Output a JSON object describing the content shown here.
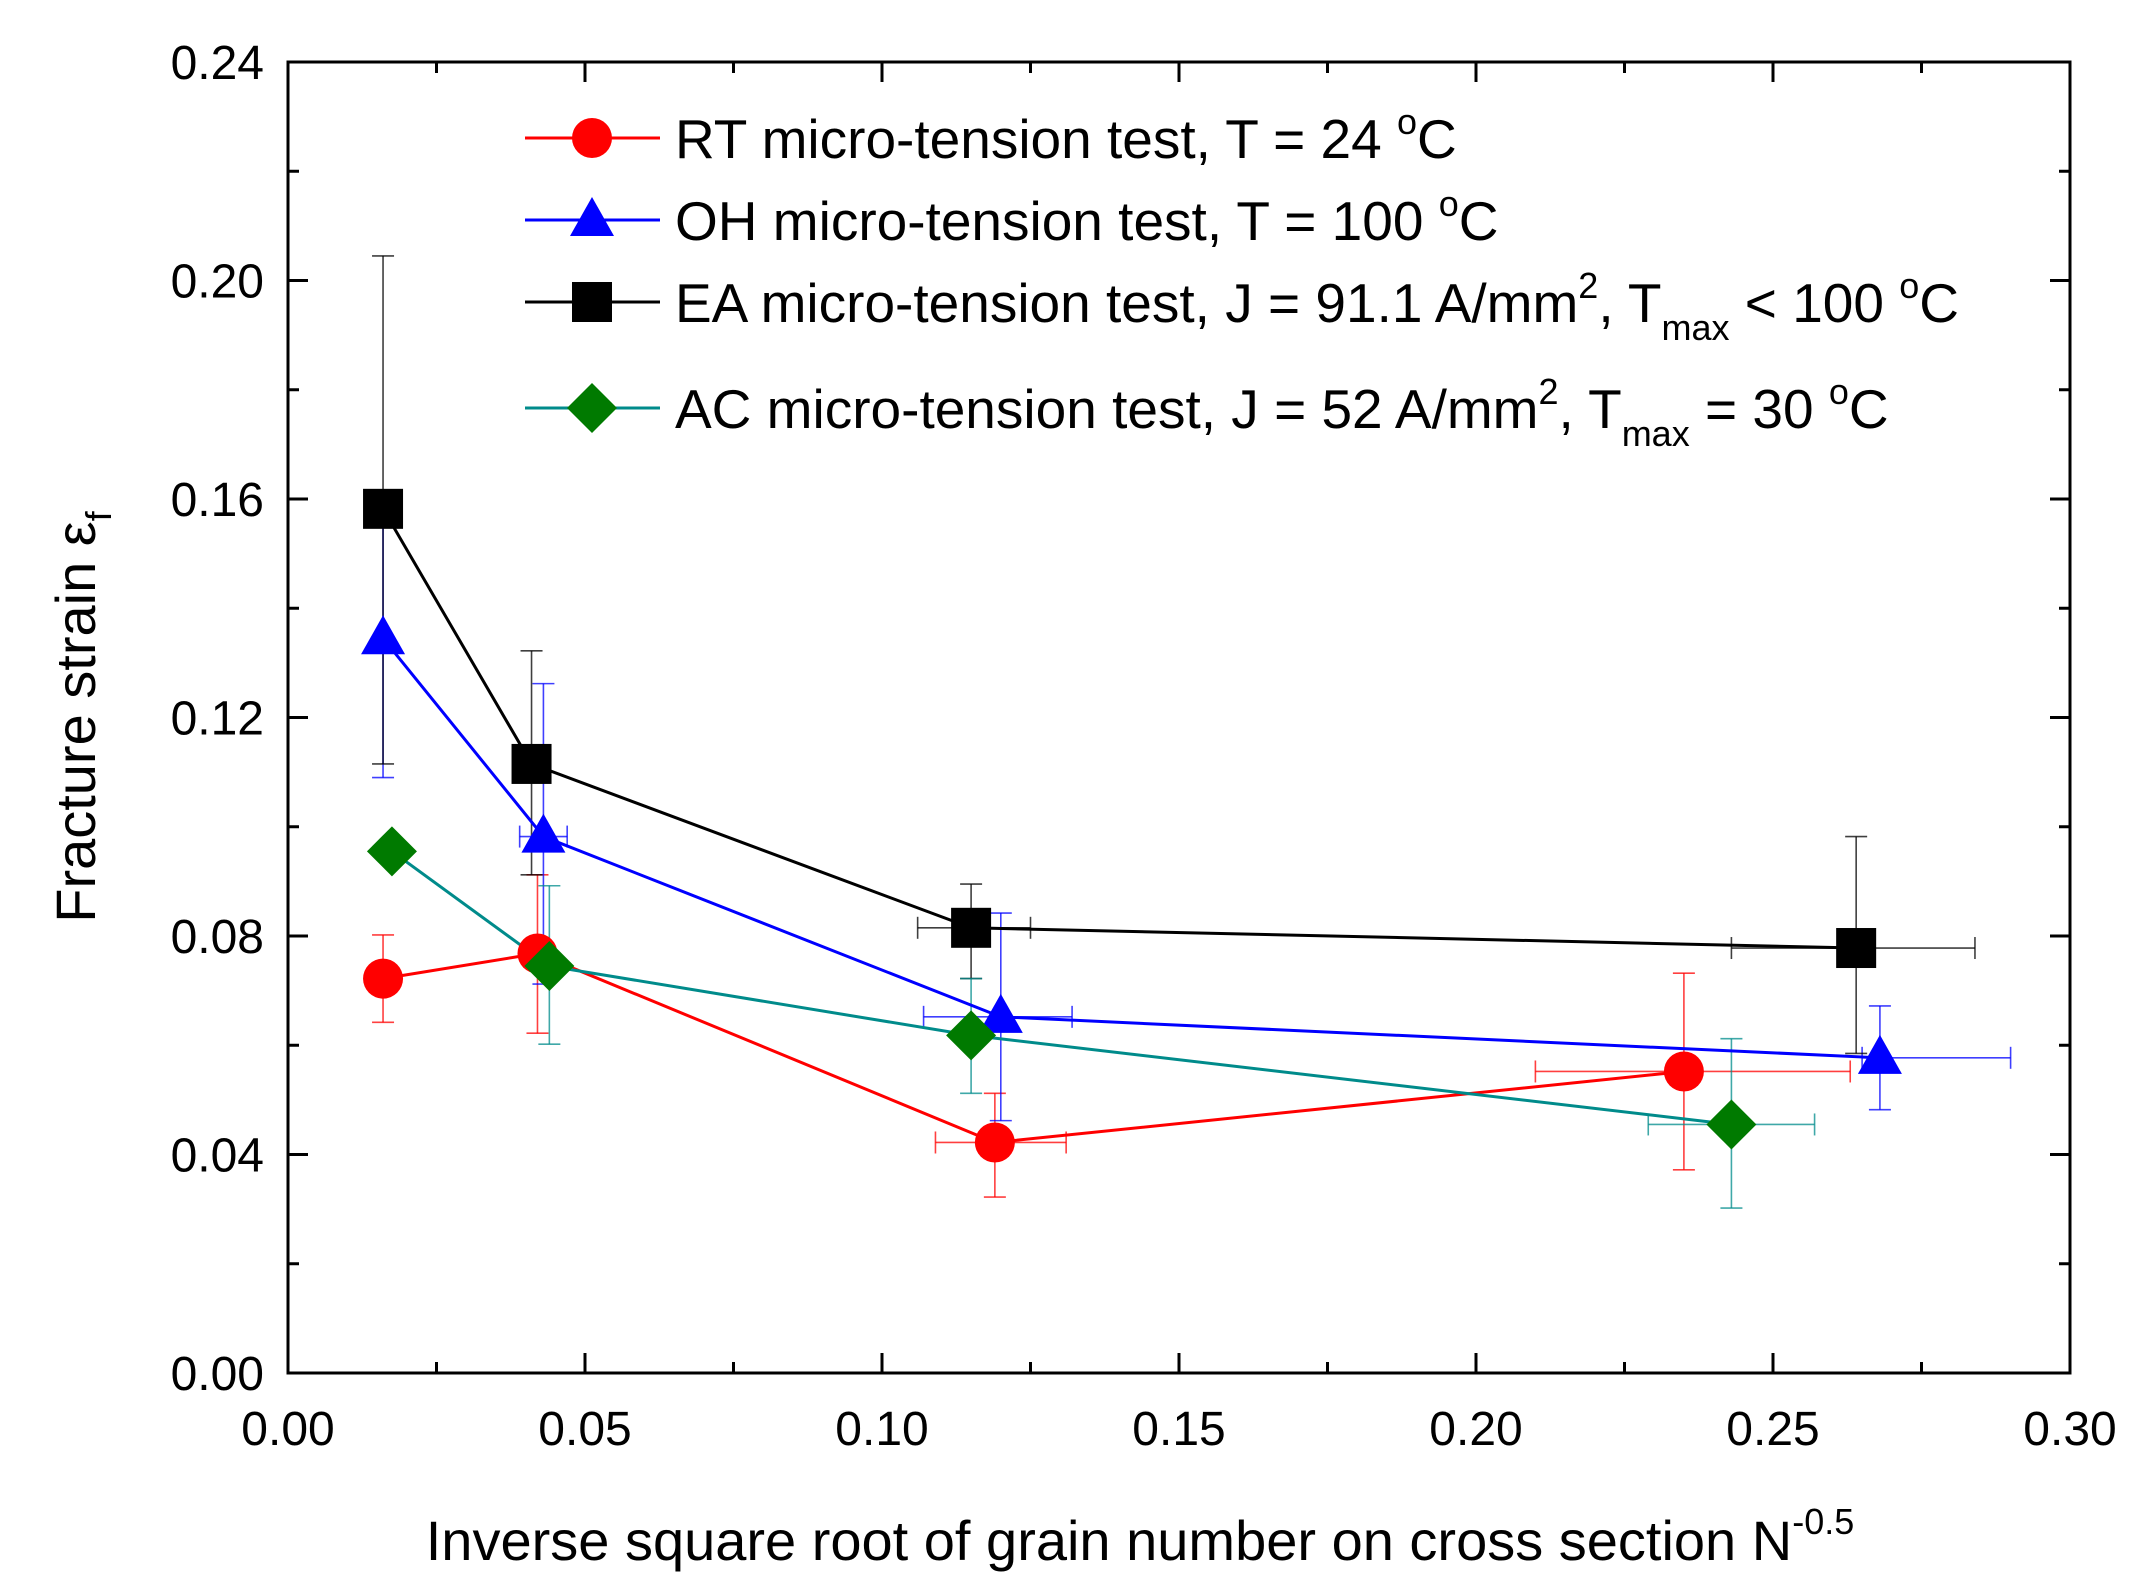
{
  "chart_data": {
    "type": "line",
    "title": "",
    "xlabel": "Inverse square root of grain number on cross section N",
    "xlabel_sup": "-0.5",
    "ylabel": "Fracture strain ε",
    "ylabel_sub": "f",
    "xlim": [
      0.0,
      0.3
    ],
    "ylim": [
      0.0,
      0.24
    ],
    "x_ticks": [
      0.0,
      0.05,
      0.1,
      0.15,
      0.2,
      0.25,
      0.3
    ],
    "x_tick_labels": [
      "0.00",
      "0.05",
      "0.10",
      "0.15",
      "0.20",
      "0.25",
      "0.30"
    ],
    "y_ticks": [
      0.0,
      0.04,
      0.08,
      0.12,
      0.16,
      0.2,
      0.24
    ],
    "y_tick_labels": [
      "0.00",
      "0.04",
      "0.08",
      "0.12",
      "0.16",
      "0.20",
      "0.24"
    ],
    "grid": false,
    "legend_position": "top-right",
    "series": [
      {
        "name": "RT micro-tension test",
        "label_main": "RT micro-tension test, T = 24 ",
        "label_sup": "o",
        "label_tail": "C",
        "color": "#ff0000",
        "marker": "circle",
        "points": [
          {
            "x": 0.016,
            "y": 0.0722,
            "yerr_low": 0.0642,
            "yerr_high": 0.0802
          },
          {
            "x": 0.042,
            "y": 0.0768,
            "yerr_low": 0.0622,
            "yerr_high": 0.0912
          },
          {
            "x": 0.119,
            "y": 0.0422,
            "yerr_low": 0.0322,
            "yerr_high": 0.0512,
            "xerr_low": 0.109,
            "xerr_high": 0.131
          },
          {
            "x": 0.235,
            "y": 0.0552,
            "yerr_low": 0.0372,
            "yerr_high": 0.0732,
            "xerr_low": 0.21,
            "xerr_high": 0.263
          }
        ]
      },
      {
        "name": "OH micro-tension test",
        "label_main": "OH micro-tension test, T = 100 ",
        "label_sup": "o",
        "label_tail": "C",
        "color": "#0000ff",
        "marker": "triangle",
        "points": [
          {
            "x": 0.016,
            "y": 0.1345,
            "yerr_low": 0.109,
            "yerr_high": 0.1582
          },
          {
            "x": 0.043,
            "y": 0.0982,
            "yerr_low": 0.0712,
            "yerr_high": 0.1262,
            "xerr_low": 0.039,
            "xerr_high": 0.047
          },
          {
            "x": 0.12,
            "y": 0.0652,
            "yerr_low": 0.0462,
            "yerr_high": 0.0842,
            "xerr_low": 0.107,
            "xerr_high": 0.132
          },
          {
            "x": 0.268,
            "y": 0.0577,
            "yerr_low": 0.0482,
            "yerr_high": 0.0672,
            "xerr_low": 0.265,
            "xerr_high": 0.29
          }
        ]
      },
      {
        "name": "EA micro-tension test",
        "label_main": "EA micro-tension test, J = 91.1 A/mm",
        "label_sup": "2",
        "label_mid": ", T",
        "label_sub": "max",
        "label_tail": " < 100 ",
        "label_sup2": "o",
        "label_tail2": "C",
        "color": "#000000",
        "marker": "square",
        "points": [
          {
            "x": 0.016,
            "y": 0.1582,
            "yerr_low": 0.1115,
            "yerr_high": 0.2045
          },
          {
            "x": 0.041,
            "y": 0.1115,
            "yerr_low": 0.0912,
            "yerr_high": 0.1322
          },
          {
            "x": 0.115,
            "y": 0.0815,
            "yerr_low": 0.0722,
            "yerr_high": 0.0895,
            "xerr_low": 0.106,
            "xerr_high": 0.125
          },
          {
            "x": 0.264,
            "y": 0.0778,
            "yerr_low": 0.0585,
            "yerr_high": 0.0982,
            "xerr_low": 0.243,
            "xerr_high": 0.284
          }
        ]
      },
      {
        "name": "AC micro-tension test",
        "label_main": "AC micro-tension test, J = 52 A/mm",
        "label_sup": "2",
        "label_mid": ", T",
        "label_sub": "max",
        "label_tail": " = 30 ",
        "label_sup2": "o",
        "label_tail2": "C",
        "color": "#008b8b",
        "marker_color": "#007a00",
        "marker": "diamond",
        "points": [
          {
            "x": 0.0175,
            "y": 0.0955
          },
          {
            "x": 0.044,
            "y": 0.0745,
            "yerr_low": 0.0602,
            "yerr_high": 0.0892
          },
          {
            "x": 0.115,
            "y": 0.0618,
            "yerr_low": 0.0512,
            "yerr_high": 0.0722
          },
          {
            "x": 0.243,
            "y": 0.0455,
            "yerr_low": 0.0302,
            "yerr_high": 0.0612,
            "xerr_low": 0.229,
            "xerr_high": 0.257
          }
        ]
      }
    ]
  }
}
